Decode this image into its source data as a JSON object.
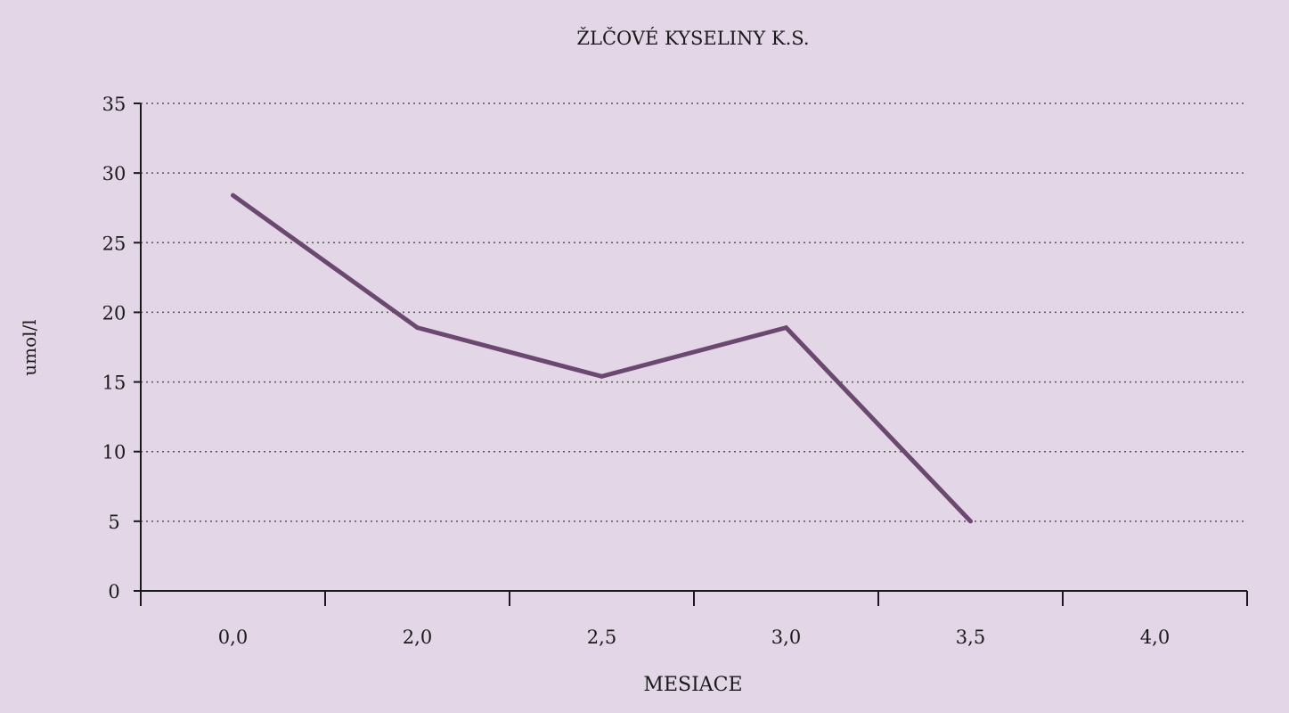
{
  "colors": {
    "background": "#e3d6e6",
    "line": "#6b4870",
    "axis": "#1a1a1a",
    "grid": "#555555",
    "text": "#1a1a1a"
  },
  "chart_data": {
    "type": "line",
    "title": "ŽLČOVÉ KYSELINY K.S.",
    "xlabel": "MESIACE",
    "ylabel": "umol/l",
    "categories": [
      "0,0",
      "2,0",
      "2,5",
      "3,0",
      "3,5",
      "4,0"
    ],
    "series": [
      {
        "values": [
          28.4,
          18.9,
          15.4,
          18.9,
          5.0,
          null
        ]
      }
    ],
    "yticks": [
      "0",
      "5",
      "10",
      "15",
      "20",
      "25",
      "30",
      "35"
    ],
    "ylim": [
      0,
      35
    ],
    "grid": "horizontal dotted",
    "legend": "none"
  }
}
